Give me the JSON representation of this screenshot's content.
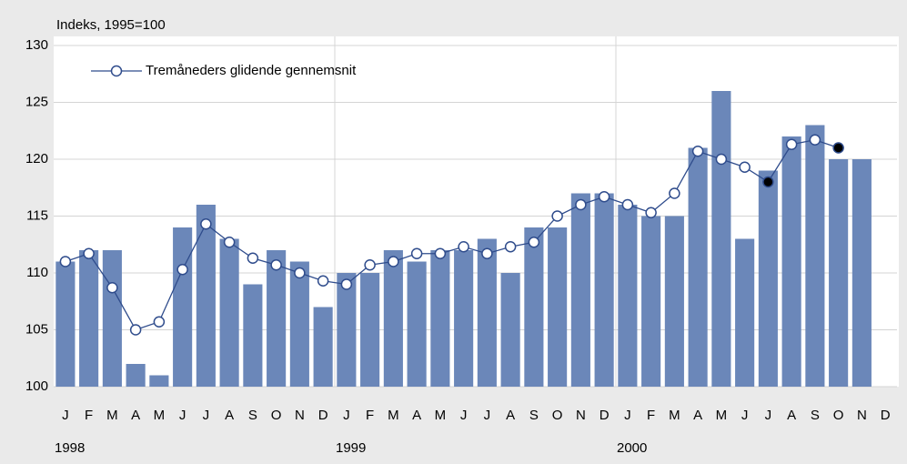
{
  "chart_data": {
    "type": "bar",
    "ylabel": "Indeks, 1995=100",
    "categories": [
      "J",
      "F",
      "M",
      "A",
      "M",
      "J",
      "J",
      "A",
      "S",
      "O",
      "N",
      "D",
      "J",
      "F",
      "M",
      "A",
      "M",
      "J",
      "J",
      "A",
      "S",
      "O",
      "N",
      "D",
      "J",
      "F",
      "M",
      "A",
      "M",
      "J",
      "J",
      "A",
      "S",
      "O",
      "N",
      "D"
    ],
    "years": [
      "1998",
      "1999",
      "2000"
    ],
    "series": [
      {
        "type": "bar",
        "color": "#6b87b9",
        "values": [
          111,
          112,
          112,
          102,
          101,
          114,
          116,
          113,
          109,
          112,
          111,
          107,
          110,
          110,
          112,
          111,
          112,
          112,
          113,
          110,
          114,
          114,
          117,
          117,
          116,
          115,
          115,
          121,
          126,
          113,
          119,
          122,
          123,
          120,
          120,
          null
        ]
      },
      {
        "type": "line",
        "name": "Tremåneders glidende gennemsnit",
        "color": "#2f4c8c",
        "marker_fill": "#ffffff",
        "highlight_fill": "#000000",
        "highlighted": [
          30,
          33
        ],
        "values": [
          111,
          111.7,
          108.7,
          105,
          105.7,
          110.3,
          114.3,
          112.7,
          111.3,
          110.7,
          110,
          109.3,
          109,
          110.7,
          111,
          111.7,
          111.7,
          112.3,
          111.7,
          112.3,
          112.7,
          115,
          116,
          116.7,
          116,
          115.3,
          117,
          120.7,
          120,
          119.3,
          118,
          121.3,
          121.7,
          121,
          null,
          null
        ]
      }
    ],
    "ylim": [
      100,
      130
    ],
    "yticks": [
      100,
      105,
      110,
      115,
      120,
      125,
      130
    ],
    "grid": true
  }
}
